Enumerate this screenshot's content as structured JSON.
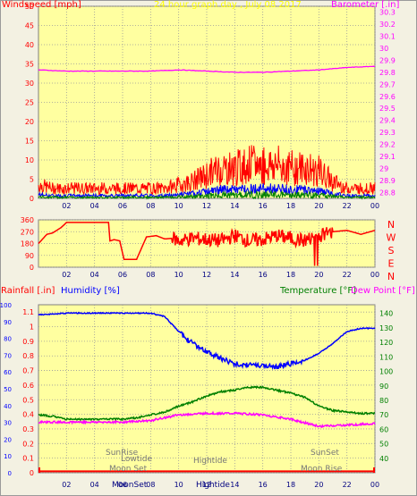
{
  "header": {
    "left_label": "Windspeed [mph]",
    "title": "24 hour graph day , July 08 2017",
    "right_label": "Barometer [.in]"
  },
  "colors": {
    "bg": "#ffffa0",
    "grid": "#9a9a9a",
    "wind": "#ff0000",
    "gust_low": "#0000ff",
    "wind_low": "#008000",
    "baro": "#ff00ff",
    "dir": "#ff0000",
    "hum": "#0000ff",
    "temp": "#008000",
    "dew": "#ff00ff",
    "rain": "#ff0000"
  },
  "x_ticks": [
    "02",
    "04",
    "06",
    "08",
    "10",
    "12",
    "14",
    "16",
    "18",
    "20",
    "22",
    "00"
  ],
  "chart_data": [
    {
      "type": "line",
      "name": "wind-barometer",
      "left_axis": {
        "ticks": [
          "0",
          "5",
          "10",
          "15",
          "20",
          "25",
          "30",
          "35",
          "40",
          "45",
          "50"
        ],
        "range": [
          0,
          50
        ]
      },
      "right_axis": {
        "ticks": [
          "28.8",
          "28.9",
          "29",
          "29.1",
          "29.2",
          "29.3",
          "29.4",
          "29.5",
          "29.6",
          "29.7",
          "29.8",
          "29.9",
          "30",
          "30.1",
          "30.2",
          "30.3"
        ],
        "range": [
          28.75,
          30.35
        ]
      },
      "series": [
        {
          "name": "Windspeed",
          "x": [
            0,
            1,
            2,
            3,
            4,
            5,
            6,
            7,
            8,
            9,
            10,
            11,
            12,
            13,
            14,
            15,
            16,
            17,
            18,
            19,
            20,
            21,
            22,
            23,
            24
          ],
          "values": [
            4,
            3,
            3,
            3,
            3,
            3,
            3,
            3,
            3,
            3,
            4,
            5,
            7,
            9,
            9,
            10,
            10,
            10,
            9,
            9,
            8,
            5,
            3,
            3,
            3
          ]
        },
        {
          "name": "Barometer",
          "x": [
            0,
            2,
            4,
            6,
            8,
            10,
            12,
            14,
            16,
            18,
            20,
            22,
            24
          ],
          "values": [
            29.82,
            29.81,
            29.81,
            29.81,
            29.81,
            29.82,
            29.81,
            29.8,
            29.8,
            29.81,
            29.82,
            29.84,
            29.85
          ]
        }
      ]
    },
    {
      "type": "line",
      "name": "wind-direction",
      "left_axis": {
        "ticks": [
          "0",
          "90",
          "180",
          "270",
          "360"
        ],
        "range": [
          0,
          360
        ]
      },
      "right_axis": {
        "ticks": [
          "N",
          "W",
          "S",
          "E",
          "N"
        ]
      },
      "series": [
        {
          "name": "Direction",
          "x": [
            0,
            0.6,
            1,
            1.6,
            2,
            3,
            4,
            5,
            5.1,
            5.4,
            5.8,
            6.1,
            6.8,
            7,
            7.7,
            8.4,
            9,
            9.6,
            10,
            11,
            12,
            13,
            14,
            15,
            16,
            17,
            18,
            19,
            20,
            21,
            22,
            23,
            24
          ],
          "values": [
            180,
            250,
            260,
            300,
            340,
            340,
            340,
            340,
            200,
            210,
            200,
            60,
            60,
            60,
            230,
            240,
            215,
            220,
            200,
            220,
            210,
            200,
            240,
            200,
            210,
            240,
            220,
            200,
            240,
            270,
            280,
            250,
            280
          ]
        }
      ]
    },
    {
      "type": "line",
      "name": "temp-humidity",
      "humidity_axis": {
        "ticks": [
          "0",
          "10",
          "20",
          "30",
          "40",
          "50",
          "60",
          "70",
          "80",
          "90",
          "100"
        ],
        "range": [
          0,
          100
        ]
      },
      "rain_axis": {
        "ticks": [
          "0",
          "0.1",
          "0.2",
          "0.3",
          "0.4",
          "0.5",
          "0.6",
          "0.7",
          "0.8",
          "0.9",
          "1",
          "1.1"
        ],
        "range": [
          0,
          1.15
        ]
      },
      "temp_axis": {
        "ticks": [
          "40",
          "50",
          "60",
          "70",
          "80",
          "90",
          "100",
          "110",
          "120",
          "130",
          "140"
        ],
        "range": [
          30,
          146
        ]
      },
      "series": [
        {
          "name": "Humidity",
          "x": [
            0,
            2,
            4,
            6,
            8,
            9,
            10,
            11,
            12,
            13,
            14,
            15,
            16,
            17,
            18,
            19,
            20,
            21,
            22,
            23,
            24
          ],
          "values": [
            94,
            95,
            95,
            95,
            95,
            93,
            84,
            77,
            72,
            68,
            65,
            64,
            64,
            63,
            65,
            67,
            71,
            77,
            84,
            86,
            86
          ]
        },
        {
          "name": "Temperature",
          "x": [
            0,
            1,
            2,
            3,
            4,
            5,
            6,
            7,
            8,
            9,
            10,
            11,
            12,
            13,
            14,
            15,
            16,
            17,
            18,
            19,
            20,
            21,
            22,
            23,
            24
          ],
          "values": [
            70,
            69,
            67,
            67,
            67,
            67,
            67,
            68,
            70,
            72,
            76,
            79,
            83,
            86,
            87,
            89,
            89,
            87,
            85,
            82,
            76,
            73,
            72,
            71,
            71
          ]
        },
        {
          "name": "Dew Point",
          "x": [
            0,
            2,
            4,
            6,
            8,
            10,
            12,
            14,
            16,
            18,
            20,
            22,
            24
          ],
          "values": [
            65,
            65,
            65,
            65,
            66,
            70,
            71,
            71,
            70,
            67,
            62,
            63,
            64
          ]
        },
        {
          "name": "Rainfall",
          "x": [
            0,
            24
          ],
          "values": [
            0.01,
            0.01
          ]
        }
      ]
    }
  ],
  "legend": {
    "rain": "Rainfall [.in]",
    "hum": "Humidity [%]",
    "temp": "Temperature [°F]",
    "dew": "Dew Point [°F]"
  },
  "annotations": {
    "sunrise": "SunRise",
    "lowtide": "Lowtide",
    "moonset_top": "Moon Set",
    "hightide": "Hightide",
    "sunset": "SunSet",
    "moonrise": "Moon Rise",
    "moonset_axis": "MoonSet",
    "hightide_axis": "Hightide"
  }
}
